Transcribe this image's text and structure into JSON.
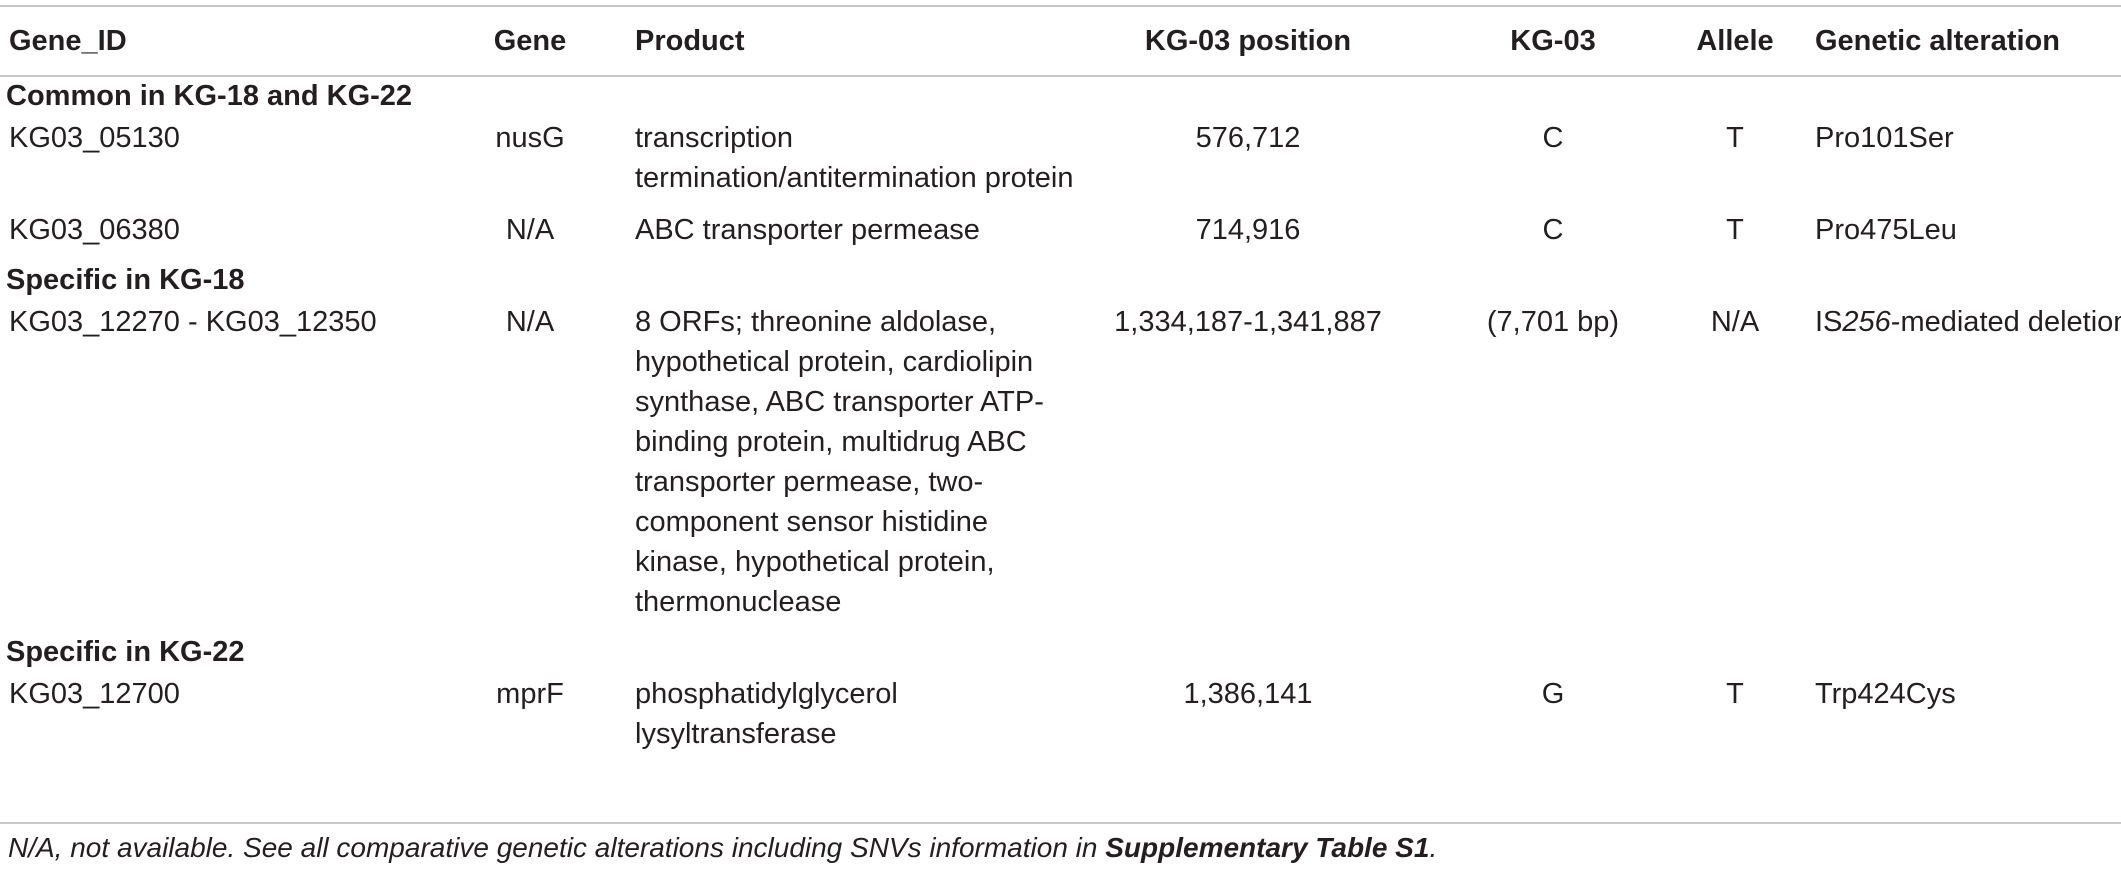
{
  "table": {
    "headers": [
      "Gene_ID",
      "Gene",
      "Product",
      "KG-03 position",
      "KG-03",
      "Allele",
      "Genetic alteration"
    ],
    "groups": [
      {
        "label": "Common in KG-18 and KG-22",
        "rows": [
          {
            "gene_id": "KG03_05130",
            "gene": "nusG",
            "product": "transcription termination/antitermination protein",
            "position": "576,712",
            "kg03": "C",
            "allele": "T",
            "alteration": "Pro101Ser"
          },
          {
            "gene_id": "KG03_06380",
            "gene": "N/A",
            "product": "ABC transporter permease",
            "position": "714,916",
            "kg03": "C",
            "allele": "T",
            "alteration": "Pro475Leu"
          }
        ]
      },
      {
        "label": "Specific in KG-18",
        "rows": [
          {
            "gene_id": "KG03_12270 - KG03_12350",
            "gene": "N/A",
            "product": "8 ORFs; threonine aldolase, hypothetical protein, cardiolipin synthase, ABC transporter ATP-binding protein, multidrug ABC transporter permease, two-component sensor histidine kinase, hypothetical protein, thermonuclease",
            "position": "1,334,187-1,341,887",
            "kg03": "(7,701 bp)",
            "allele": "N/A",
            "alteration_prefix": "IS",
            "alteration_italic": "256",
            "alteration_suffix": "-mediated deletion"
          }
        ]
      },
      {
        "label": "Specific in KG-22",
        "rows": [
          {
            "gene_id": "KG03_12700",
            "gene": "mprF",
            "product": "phosphatidylglycerol lysyltransferase",
            "position": "1,386,141",
            "kg03": "G",
            "allele": "T",
            "alteration": "Trp424Cys"
          }
        ]
      }
    ]
  },
  "footnote": {
    "text": "N/A, not available. See all comparative genetic alterations including SNVs information in ",
    "bold": "Supplementary Table S1",
    "end": "."
  }
}
